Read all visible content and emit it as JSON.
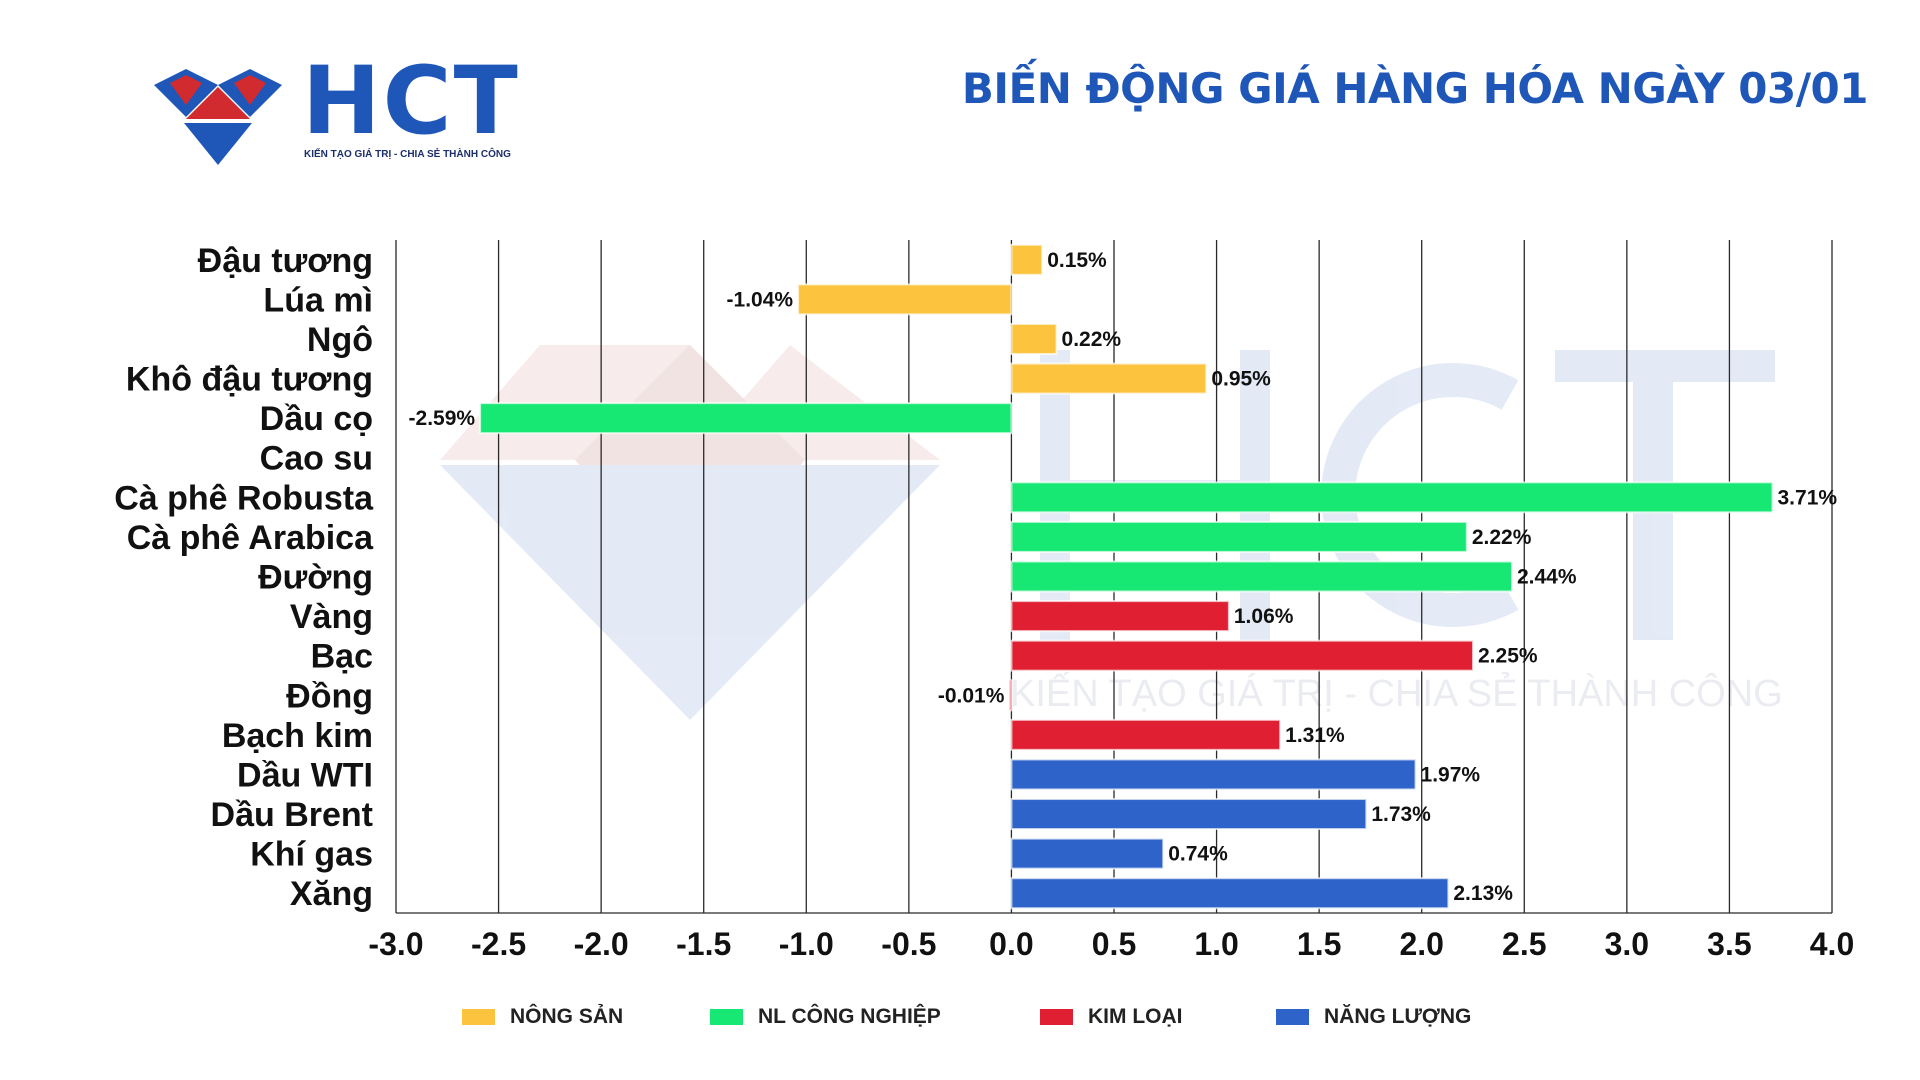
{
  "logo": {
    "brand": "HCT",
    "tagline": "KIẾN TẠO GIÁ TRỊ - CHIA SẺ THÀNH CÔNG"
  },
  "title": "BIẾN ĐỘNG GIÁ HÀNG HÓA NGÀY 03/01",
  "watermark": {
    "text": "KIẾN TẠO GIÁ TRỊ - CHIA SẺ THÀNH CÔNG"
  },
  "colors": {
    "nong_san": "#fcc43e",
    "nl_cong_nghiep": "#17e874",
    "kim_loai": "#e02032",
    "nang_luong": "#2e63c9",
    "brand_blue": "#1f57b8",
    "brand_red": "#d12a2f"
  },
  "legend": [
    {
      "label": "NÔNG SẢN",
      "group": "nong_san"
    },
    {
      "label": "NL CÔNG NGHIỆP",
      "group": "nl_cong_nghiep"
    },
    {
      "label": "KIM LOẠI",
      "group": "kim_loai"
    },
    {
      "label": "NĂNG LƯỢNG",
      "group": "nang_luong"
    }
  ],
  "chart_data": {
    "type": "bar",
    "orientation": "horizontal",
    "title": "BIẾN ĐỘNG GIÁ HÀNG HÓA NGÀY 03/01",
    "xlabel": "",
    "ylabel": "",
    "xlim": [
      -3.0,
      4.0
    ],
    "xticks": [
      "-3.0",
      "-2.5",
      "-2.0",
      "-1.5",
      "-1.0",
      "-0.5",
      "0.0",
      "0.5",
      "1.0",
      "1.5",
      "2.0",
      "2.5",
      "3.0",
      "3.5",
      "4.0"
    ],
    "grid": "vertical",
    "categories": [
      "Đậu tương",
      "Lúa mì",
      "Ngô",
      "Khô đậu tương",
      "Dầu cọ",
      "Cao su",
      "Cà phê Robusta",
      "Cà phê Arabica",
      "Đường",
      "Vàng",
      "Bạc",
      "Đồng",
      "Bạch kim",
      "Dầu WTI",
      "Dầu Brent",
      "Khí gas",
      "Xăng"
    ],
    "values": [
      0.15,
      -1.04,
      0.22,
      0.95,
      -2.59,
      null,
      3.71,
      2.22,
      2.44,
      1.06,
      2.25,
      -0.01,
      1.31,
      1.97,
      1.73,
      0.74,
      2.13
    ],
    "value_labels": [
      "0.15%",
      "-1.04%",
      "0.22%",
      "0.95%",
      "-2.59%",
      "",
      "3.71%",
      "2.22%",
      "2.44%",
      "1.06%",
      "2.25%",
      "-0.01%",
      "1.31%",
      "1.97%",
      "1.73%",
      "0.74%",
      "2.13%"
    ],
    "groups": [
      "nong_san",
      "nong_san",
      "nong_san",
      "nong_san",
      "nl_cong_nghiep",
      "nl_cong_nghiep",
      "nl_cong_nghiep",
      "nl_cong_nghiep",
      "nl_cong_nghiep",
      "kim_loai",
      "kim_loai",
      "kim_loai",
      "kim_loai",
      "nang_luong",
      "nang_luong",
      "nang_luong",
      "nang_luong"
    ],
    "legend_position": "bottom"
  }
}
